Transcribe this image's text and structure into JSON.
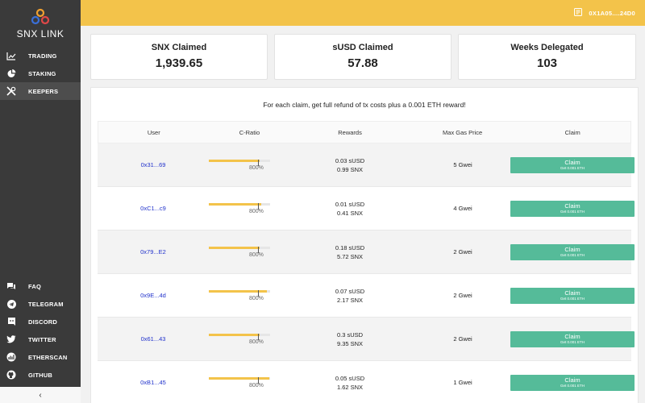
{
  "app": {
    "name": "SNX LINK"
  },
  "sidebar": {
    "top_items": [
      {
        "label": "TRADING",
        "icon": "chart-icon"
      },
      {
        "label": "STAKING",
        "icon": "pie-chart-icon"
      },
      {
        "label": "KEEPERS",
        "icon": "tools-icon"
      }
    ],
    "bottom_items": [
      {
        "label": "FAQ",
        "icon": "chat-icon"
      },
      {
        "label": "TELEGRAM",
        "icon": "telegram-icon"
      },
      {
        "label": "DISCORD",
        "icon": "discord-icon"
      },
      {
        "label": "TWITTER",
        "icon": "twitter-icon"
      },
      {
        "label": "ETHERSCAN",
        "icon": "etherscan-icon"
      },
      {
        "label": "GITHUB",
        "icon": "github-icon"
      }
    ],
    "collapse_label": "‹"
  },
  "header": {
    "wallet": "0X1A05....24D0"
  },
  "stats": [
    {
      "label": "SNX Claimed",
      "value": "1,939.65"
    },
    {
      "label": "sUSD Claimed",
      "value": "57.88"
    },
    {
      "label": "Weeks Delegated",
      "value": "103"
    }
  ],
  "panel": {
    "info": "For each claim, get full refund of tx costs plus a 0.001 ETH reward!",
    "columns": [
      "User",
      "C-Ratio",
      "Rewards",
      "Max Gas Price",
      "Claim"
    ],
    "rows": [
      {
        "user": "0x31...69",
        "cratio_fill": 0.83,
        "cratio_label": "800%",
        "susd": "0.03 sUSD",
        "snx": "0.99 SNX",
        "gas": "5 Gwei",
        "claim": "Claim",
        "claim_sub": "Get 0.001 ETH"
      },
      {
        "user": "0xC1...c9",
        "cratio_fill": 0.86,
        "cratio_label": "800%",
        "susd": "0.01 sUSD",
        "snx": "0.41 SNX",
        "gas": "4 Gwei",
        "claim": "Claim",
        "claim_sub": "Get 0.001 ETH"
      },
      {
        "user": "0x79...E2",
        "cratio_fill": 0.83,
        "cratio_label": "800%",
        "susd": "0.18 sUSD",
        "snx": "5.72 SNX",
        "gas": "2 Gwei",
        "claim": "Claim",
        "claim_sub": "Get 0.001 ETH"
      },
      {
        "user": "0x9E...4d",
        "cratio_fill": 0.95,
        "cratio_label": "800%",
        "susd": "0.07 sUSD",
        "snx": "2.17 SNX",
        "gas": "2 Gwei",
        "claim": "Claim",
        "claim_sub": "Get 0.001 ETH"
      },
      {
        "user": "0x61...43",
        "cratio_fill": 0.83,
        "cratio_label": "800%",
        "susd": "0.3 sUSD",
        "snx": "9.35 SNX",
        "gas": "2 Gwei",
        "claim": "Claim",
        "claim_sub": "Get 0.001 ETH"
      },
      {
        "user": "0xB1...45",
        "cratio_fill": 0.99,
        "cratio_label": "800%",
        "susd": "0.05 sUSD",
        "snx": "1.62 SNX",
        "gas": "1 Gwei",
        "claim": "Claim",
        "claim_sub": "Get 0.001 ETH"
      }
    ]
  },
  "colors": {
    "accent": "#f3c34a",
    "claim": "#55bb99",
    "sidebar": "#3a3a3a",
    "link": "#2233cc"
  }
}
